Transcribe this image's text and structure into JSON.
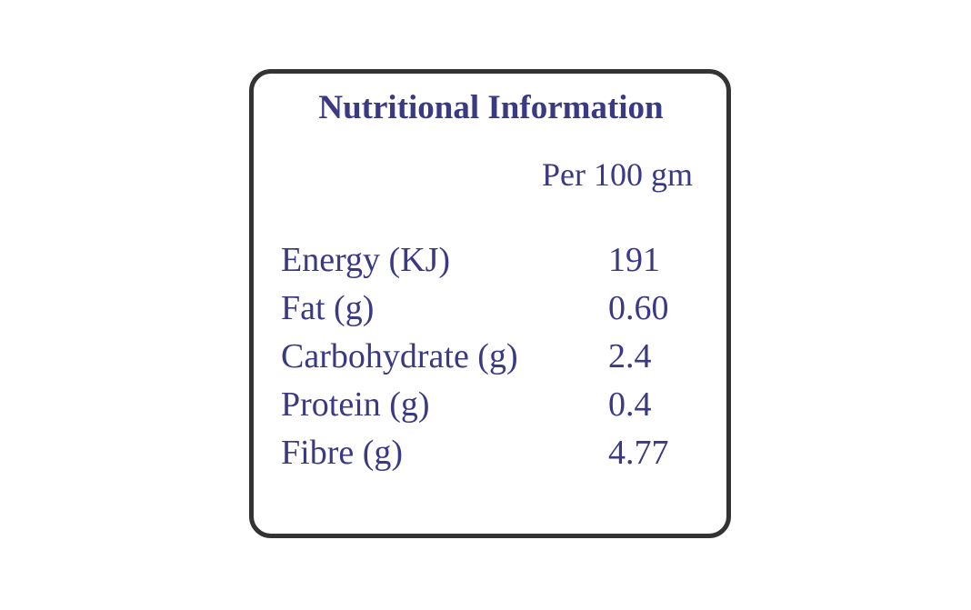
{
  "header": {
    "title": "Nutritional Information",
    "basis": "Per 100 gm"
  },
  "table": {
    "rows": [
      [
        "Energy (KJ)",
        "191"
      ],
      [
        "Fat (g)",
        "0.60"
      ],
      [
        "Carbohydrate (g)",
        "2.4"
      ],
      [
        "Protein (g)",
        "0.4"
      ],
      [
        "Fibre (g)",
        "4.77"
      ]
    ]
  }
}
